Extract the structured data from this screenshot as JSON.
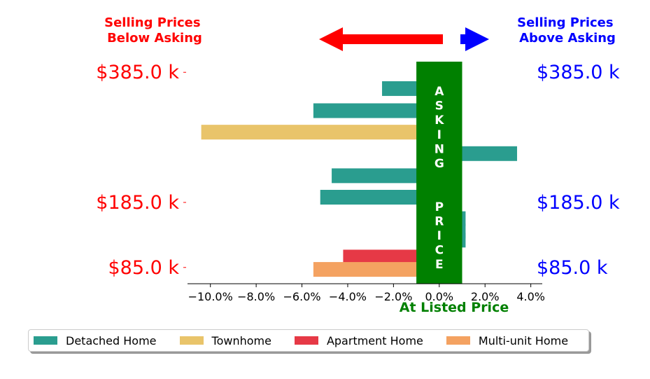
{
  "annotations": {
    "below_asking": [
      "Selling Prices",
      "Below Asking"
    ],
    "above_asking": [
      "Selling Prices",
      "Above Asking"
    ],
    "center_band": "ASKING  PRICE",
    "xlabel": "At Listed Price"
  },
  "colors": {
    "below": "#ff0000",
    "above": "#0000ff",
    "band": "#008000",
    "Detached Home": "#2a9d8f",
    "Townhome": "#e9c46a",
    "Apartment Home": "#e63946",
    "Multi-unit Home": "#f4a261"
  },
  "chart_data": {
    "type": "bar",
    "orientation": "horizontal",
    "xlim": [
      -11.0,
      4.5
    ],
    "x_ticks": [
      -10,
      -8,
      -6,
      -4,
      -2,
      0,
      2,
      4
    ],
    "x_tick_labels": [
      "−10.0%",
      "−8.0%",
      "−6.0%",
      "−4.0%",
      "−2.0%",
      "0.0%",
      "2.0%",
      "4.0%"
    ],
    "ylim": [
      60,
      410
    ],
    "y_ticks": [
      385,
      185,
      85
    ],
    "y_tick_labels": [
      "$385.0 k",
      "$185.0 k",
      "$85.0 k"
    ],
    "band_range": [
      -1.0,
      1.0
    ],
    "legend_position": "bottom",
    "grid": false,
    "bars": [
      {
        "category": "Detached Home",
        "price": 360,
        "value": -2.5
      },
      {
        "category": "Detached Home",
        "price": 326,
        "value": -5.5
      },
      {
        "category": "Townhome",
        "price": 293,
        "value": -10.4
      },
      {
        "category": "Detached Home",
        "price": 260,
        "value": 3.4
      },
      {
        "category": "Detached Home",
        "price": 226,
        "value": -4.7
      },
      {
        "category": "Detached Home",
        "price": 193,
        "value": -5.2
      },
      {
        "category": "Detached Home",
        "price": 160,
        "value": 1.15
      },
      {
        "category": "Detached Home",
        "price": 141,
        "value": 1.15
      },
      {
        "category": "Detached Home",
        "price": 127,
        "value": 1.15
      },
      {
        "category": "Apartment Home",
        "price": 101,
        "value": -4.2
      },
      {
        "category": "Multi-unit Home",
        "price": 82,
        "value": -5.5
      }
    ],
    "legend": [
      "Detached Home",
      "Townhome",
      "Apartment Home",
      "Multi-unit Home"
    ]
  }
}
